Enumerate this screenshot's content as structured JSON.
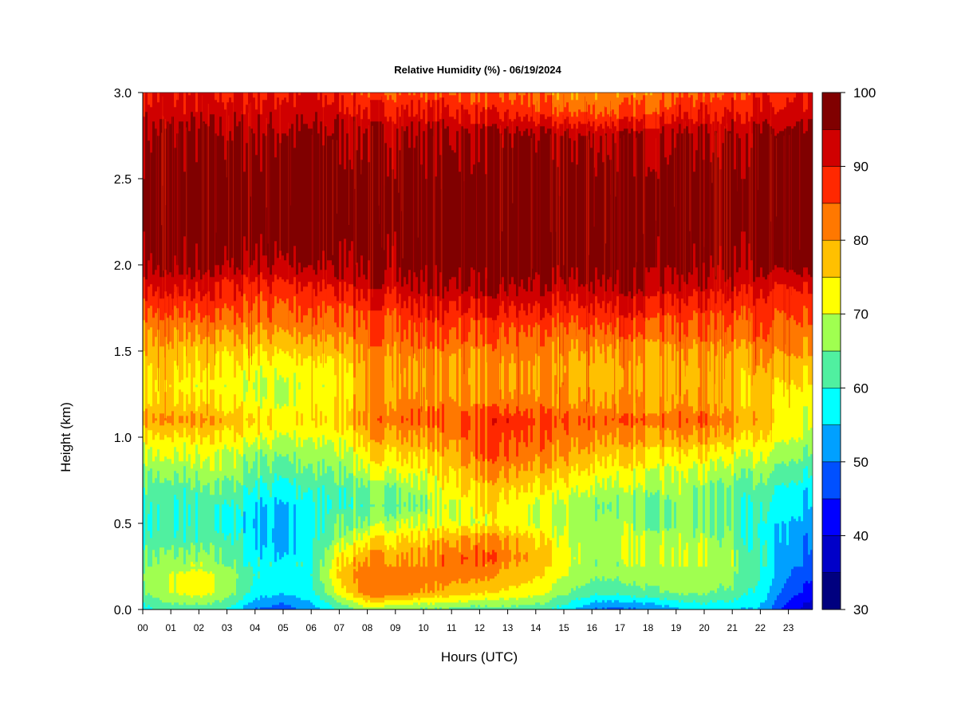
{
  "chart_data": {
    "type": "heatmap",
    "title": "Relative Humidity (%) - 06/19/2024",
    "xlabel": "Hours (UTC)",
    "ylabel": "Height (km)",
    "x_ticks": [
      "00",
      "01",
      "02",
      "03",
      "04",
      "05",
      "06",
      "07",
      "08",
      "09",
      "10",
      "11",
      "12",
      "13",
      "14",
      "15",
      "16",
      "17",
      "18",
      "19",
      "20",
      "21",
      "22",
      "23"
    ],
    "xlim": [
      0,
      23.85
    ],
    "y_ticks": [
      "0.0",
      "0.5",
      "1.0",
      "1.5",
      "2.0",
      "2.5",
      "3.0"
    ],
    "ylim": [
      0,
      3.0
    ],
    "colorbar": {
      "ticks": [
        "30",
        "40",
        "50",
        "60",
        "70",
        "80",
        "90",
        "100"
      ],
      "range": [
        30,
        100
      ],
      "levels": [
        30,
        35,
        40,
        45,
        50,
        55,
        60,
        65,
        70,
        75,
        80,
        85,
        90,
        95,
        100
      ],
      "colors": [
        "#00007F",
        "#0000C8",
        "#0000FF",
        "#0050FF",
        "#00A0FF",
        "#00FFFF",
        "#50F0A0",
        "#A0FF50",
        "#FFFF00",
        "#FFC000",
        "#FF7800",
        "#FF2800",
        "#D00000",
        "#800000"
      ]
    },
    "grid": false,
    "height_km": [
      0.0,
      0.1,
      0.2,
      0.3,
      0.4,
      0.5,
      0.6,
      0.7,
      0.8,
      0.9,
      1.0,
      1.1,
      1.2,
      1.3,
      1.4,
      1.5,
      1.6,
      1.7,
      1.8,
      1.9,
      2.0,
      2.2,
      2.5,
      2.75,
      2.9,
      3.0
    ],
    "hours": [
      0,
      1,
      2,
      3,
      4,
      5,
      6,
      7,
      8,
      9,
      10,
      11,
      12,
      13,
      14,
      15,
      16,
      17,
      18,
      19,
      20,
      21,
      22,
      23,
      23.85
    ],
    "rh_percent": [
      [
        58,
        62,
        62,
        60,
        50,
        47,
        52,
        60,
        68,
        66,
        64,
        64,
        62,
        63,
        62,
        58,
        50,
        48,
        50,
        54,
        56,
        56,
        54,
        42,
        36
      ],
      [
        65,
        70,
        72,
        68,
        58,
        56,
        58,
        72,
        83,
        84,
        80,
        78,
        76,
        74,
        72,
        66,
        62,
        62,
        64,
        66,
        66,
        64,
        58,
        47,
        42
      ],
      [
        66,
        70,
        72,
        68,
        60,
        58,
        60,
        76,
        84,
        84,
        82,
        82,
        82,
        78,
        76,
        70,
        66,
        66,
        68,
        68,
        68,
        66,
        60,
        50,
        45
      ],
      [
        64,
        66,
        66,
        64,
        58,
        56,
        58,
        74,
        80,
        80,
        80,
        84,
        84,
        82,
        78,
        72,
        68,
        68,
        70,
        70,
        70,
        68,
        60,
        52,
        46
      ],
      [
        62,
        62,
        62,
        62,
        56,
        54,
        58,
        68,
        74,
        76,
        76,
        80,
        82,
        80,
        76,
        70,
        68,
        68,
        70,
        68,
        68,
        66,
        58,
        54,
        48
      ],
      [
        61,
        60,
        60,
        60,
        55,
        55,
        58,
        64,
        66,
        70,
        70,
        72,
        72,
        72,
        70,
        68,
        68,
        68,
        66,
        66,
        66,
        64,
        58,
        54,
        50
      ],
      [
        62,
        60,
        60,
        61,
        56,
        55,
        58,
        62,
        62,
        64,
        66,
        70,
        74,
        72,
        70,
        68,
        66,
        66,
        66,
        66,
        66,
        64,
        60,
        56,
        52
      ],
      [
        63,
        62,
        63,
        64,
        60,
        58,
        60,
        62,
        64,
        66,
        68,
        74,
        76,
        76,
        74,
        72,
        70,
        68,
        68,
        68,
        66,
        64,
        62,
        58,
        54
      ],
      [
        66,
        66,
        67,
        68,
        64,
        62,
        64,
        66,
        70,
        72,
        72,
        76,
        80,
        80,
        78,
        76,
        74,
        72,
        72,
        70,
        70,
        68,
        66,
        62,
        58
      ],
      [
        70,
        70,
        70,
        70,
        66,
        66,
        66,
        68,
        74,
        76,
        76,
        78,
        84,
        84,
        82,
        80,
        78,
        76,
        76,
        74,
        74,
        72,
        70,
        66,
        62
      ],
      [
        74,
        74,
        74,
        74,
        72,
        70,
        70,
        72,
        78,
        80,
        80,
        82,
        86,
        86,
        84,
        82,
        82,
        80,
        80,
        80,
        80,
        78,
        74,
        70,
        66
      ],
      [
        80,
        80,
        80,
        78,
        76,
        74,
        74,
        76,
        82,
        84,
        84,
        84,
        87,
        88,
        86,
        85,
        85,
        84,
        84,
        84,
        84,
        82,
        78,
        72,
        68
      ],
      [
        76,
        76,
        74,
        74,
        72,
        70,
        72,
        74,
        80,
        82,
        82,
        82,
        82,
        82,
        82,
        80,
        80,
        80,
        80,
        80,
        80,
        78,
        76,
        72,
        70
      ],
      [
        74,
        74,
        72,
        72,
        70,
        70,
        70,
        73,
        80,
        80,
        80,
        80,
        80,
        80,
        80,
        80,
        78,
        78,
        78,
        78,
        78,
        78,
        76,
        74,
        72
      ],
      [
        76,
        76,
        74,
        74,
        72,
        72,
        72,
        74,
        80,
        80,
        80,
        80,
        80,
        80,
        80,
        78,
        78,
        78,
        78,
        78,
        78,
        78,
        78,
        76,
        74
      ],
      [
        78,
        78,
        76,
        76,
        76,
        76,
        76,
        78,
        82,
        82,
        82,
        82,
        82,
        82,
        82,
        80,
        80,
        80,
        80,
        80,
        80,
        80,
        80,
        80,
        78
      ],
      [
        80,
        80,
        80,
        80,
        80,
        80,
        80,
        82,
        84,
        84,
        86,
        86,
        84,
        84,
        84,
        82,
        84,
        84,
        84,
        84,
        84,
        84,
        84,
        82,
        80
      ],
      [
        84,
        84,
        84,
        84,
        84,
        84,
        84,
        84,
        86,
        86,
        88,
        88,
        88,
        88,
        88,
        86,
        88,
        88,
        88,
        86,
        86,
        86,
        86,
        84,
        84
      ],
      [
        88,
        88,
        88,
        88,
        86,
        86,
        86,
        88,
        90,
        90,
        92,
        92,
        92,
        92,
        92,
        90,
        92,
        92,
        92,
        90,
        90,
        90,
        88,
        86,
        86
      ],
      [
        92,
        92,
        92,
        90,
        90,
        90,
        90,
        92,
        94,
        94,
        95,
        96,
        96,
        96,
        95,
        94,
        96,
        96,
        96,
        94,
        94,
        94,
        92,
        90,
        90
      ],
      [
        96,
        96,
        96,
        96,
        95,
        95,
        95,
        96,
        97,
        97,
        98,
        98,
        98,
        98,
        98,
        97,
        98,
        98,
        98,
        97,
        97,
        97,
        96,
        96,
        96
      ],
      [
        98,
        98,
        98,
        98,
        98,
        98,
        98,
        98,
        98,
        98,
        98,
        98,
        98,
        98,
        98,
        98,
        98,
        98,
        98,
        98,
        98,
        98,
        98,
        98,
        98
      ],
      [
        98,
        98,
        98,
        98,
        98,
        98,
        98,
        98,
        98,
        98,
        98,
        98,
        98,
        98,
        98,
        98,
        98,
        98,
        98,
        98,
        98,
        98,
        98,
        98,
        98
      ],
      [
        96,
        96,
        96,
        96,
        96,
        96,
        96,
        96,
        96,
        96,
        96,
        96,
        96,
        96,
        96,
        95,
        95,
        95,
        95,
        96,
        96,
        96,
        96,
        96,
        96
      ],
      [
        92,
        92,
        92,
        92,
        92,
        92,
        92,
        92,
        90,
        90,
        90,
        90,
        88,
        88,
        86,
        84,
        84,
        84,
        86,
        88,
        88,
        90,
        90,
        90,
        90
      ],
      [
        90,
        90,
        90,
        90,
        90,
        90,
        90,
        88,
        86,
        86,
        86,
        86,
        86,
        84,
        84,
        80,
        82,
        82,
        82,
        84,
        86,
        86,
        88,
        88,
        88
      ]
    ]
  }
}
